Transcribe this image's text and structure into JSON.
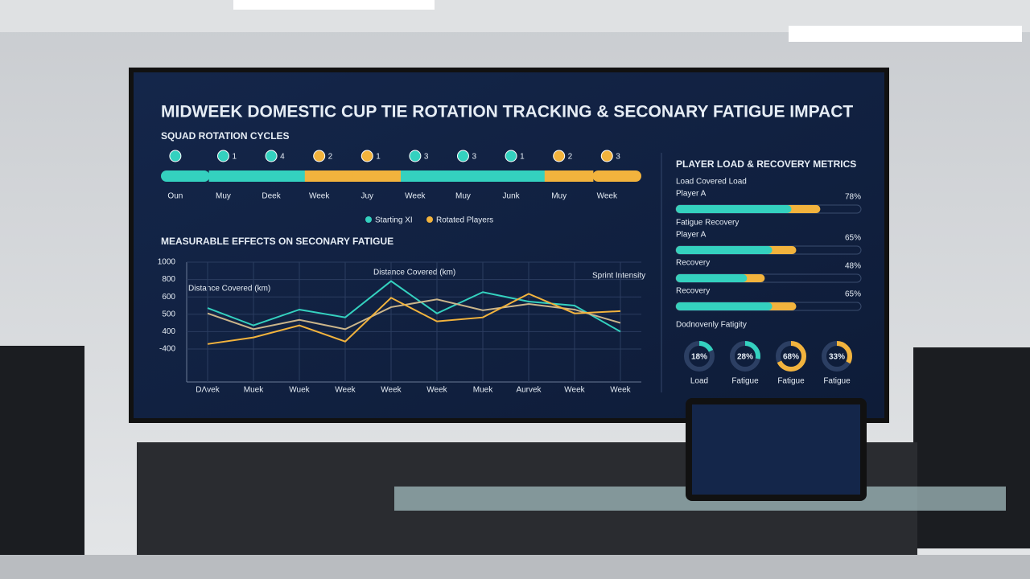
{
  "screen": {
    "title": "MIDWEEK DOMESTIC CUP TIE ROTATION TRACKING & SECONARY FATIGUE IMPACT"
  },
  "rotation": {
    "title": "SQUAD ROTATION CYCLES",
    "labels": [
      "Oun",
      "Muy",
      "Deek",
      "Week",
      "Juy",
      "Week",
      "Muy",
      "Junk",
      "Muy",
      "Week"
    ],
    "counts": [
      null,
      1,
      4,
      2,
      1,
      3,
      3,
      1,
      2,
      3
    ],
    "colors": [
      "#34d1bf",
      "#34d1bf",
      "#34d1bf",
      "#f2b33d",
      "#f2b33d",
      "#34d1bf",
      "#34d1bf",
      "#34d1bf",
      "#f2b33d",
      "#f2b33d"
    ],
    "legend": [
      {
        "name": "Starting XI",
        "color": "#34d1bf"
      },
      {
        "name": "Rotated Players",
        "color": "#f2b33d"
      }
    ]
  },
  "chart_data": {
    "type": "line",
    "title": "MEASURABLE EFFECTS ON SECONARY FATIGUE",
    "categories": [
      "DΛvek",
      "Muek",
      "Wuek",
      "Week",
      "Week",
      "Week",
      "Muek",
      "Aurvek",
      "Week",
      "Week"
    ],
    "series": [
      {
        "color": "#34d1bf",
        "values": [
          536,
          436,
          527,
          482,
          782,
          505,
          655,
          573,
          550,
          400
        ]
      },
      {
        "color": "#cbb58a",
        "values": [
          505,
          414,
          468,
          414,
          541,
          586,
          523,
          559,
          527,
          450
        ]
      },
      {
        "color": "#f2b33d",
        "values": [
          -171,
          133,
          436,
          -57,
          595,
          459,
          482,
          636,
          505,
          518
        ]
      }
    ],
    "ylim": [
      -400,
      1000
    ],
    "yticks": [
      1000,
      800,
      600,
      500,
      400,
      -400
    ],
    "annotations": [
      "Distance Covered (km)",
      "Distance Covered (km)",
      "Sprint Intensity"
    ]
  },
  "metrics": {
    "title": "PLAYER LOAD & RECOVERY METRICS",
    "xlim": [
      0,
      100
    ],
    "bars": [
      {
        "group": "Load Covered Load",
        "name": "Player A",
        "value": 78,
        "value_label": "78%"
      },
      {
        "group": "Fatigue Recovery",
        "name": "Player A",
        "value": 65,
        "value_label": "65%"
      },
      {
        "name": "Recovery",
        "value": 48,
        "value_label": "48%"
      },
      {
        "name": "Recovery",
        "value": 65,
        "value_label": "65%"
      }
    ],
    "donut_title": "Dodnovenly Fatigity",
    "donuts": [
      {
        "name": "Load",
        "value": 18,
        "value_label": "18%",
        "color": "#34d1bf"
      },
      {
        "name": "Fatigue",
        "value": 28,
        "value_label": "28%",
        "color": "#34d1bf"
      },
      {
        "name": "Fatigue",
        "value": 68,
        "value_label": "68%",
        "color": "#f2b33d"
      },
      {
        "name": "Fatigue",
        "value": 33,
        "value_label": "33%",
        "color": "#f2b33d"
      }
    ]
  }
}
